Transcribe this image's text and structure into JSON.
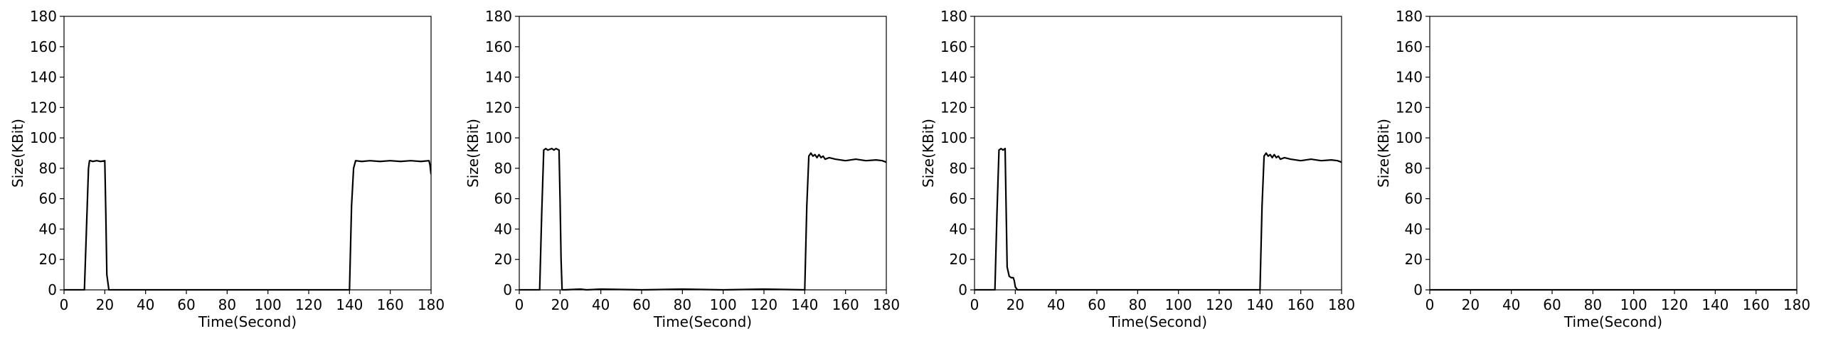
{
  "chart_data": [
    {
      "type": "line",
      "xlabel": "Time(Second)",
      "ylabel": "Size(KBit)",
      "xlim": [
        0,
        180
      ],
      "ylim": [
        0,
        180
      ],
      "xticks": [
        "0",
        "20",
        "40",
        "60",
        "80",
        "100",
        "120",
        "140",
        "160",
        "180"
      ],
      "yticks": [
        "0",
        "20",
        "40",
        "60",
        "80",
        "100",
        "120",
        "140",
        "160",
        "180"
      ],
      "grid": false,
      "line_color": "#000000",
      "series": [
        {
          "x": [
            0,
            10,
            11,
            12,
            12.5,
            13,
            14,
            16,
            18,
            20,
            20.5,
            21,
            22,
            40,
            60,
            80,
            100,
            120,
            140,
            141,
            142,
            143,
            146,
            150,
            155,
            160,
            165,
            170,
            175,
            179,
            179.5,
            180
          ],
          "y": [
            0,
            0,
            40,
            80,
            85,
            85,
            84.5,
            85,
            84.5,
            85,
            50,
            10,
            0,
            0,
            0,
            0,
            0,
            0,
            0,
            55,
            80,
            85,
            84.5,
            85,
            84.5,
            85,
            84.5,
            85,
            84.5,
            85,
            82,
            76
          ]
        }
      ]
    },
    {
      "type": "line",
      "xlabel": "Time(Second)",
      "ylabel": "Size(KBit)",
      "xlim": [
        0,
        180
      ],
      "ylim": [
        0,
        180
      ],
      "xticks": [
        "0",
        "20",
        "40",
        "60",
        "80",
        "100",
        "120",
        "140",
        "160",
        "180"
      ],
      "yticks": [
        "0",
        "20",
        "40",
        "60",
        "80",
        "100",
        "120",
        "140",
        "160",
        "180"
      ],
      "grid": false,
      "line_color": "#000000",
      "series": [
        {
          "x": [
            0,
            10,
            11,
            12,
            13,
            14,
            16,
            17,
            18,
            19.5,
            20,
            20.5,
            21,
            22,
            30,
            33,
            40,
            60,
            80,
            100,
            120,
            140,
            141,
            142,
            143,
            144,
            145,
            146,
            147,
            148,
            149,
            150,
            152,
            155,
            160,
            165,
            170,
            175,
            178,
            180
          ],
          "y": [
            0,
            0,
            50,
            92,
            93,
            92,
            93,
            92,
            93,
            92,
            60,
            20,
            0,
            0,
            0.5,
            0,
            0.5,
            0,
            0.5,
            0,
            0.5,
            0,
            55,
            88,
            90,
            88,
            89,
            87,
            89,
            87,
            88,
            86,
            87,
            86,
            85,
            86,
            85,
            85.5,
            85,
            84
          ]
        }
      ]
    },
    {
      "type": "line",
      "xlabel": "Time(Second)",
      "ylabel": "Size(KBit)",
      "xlim": [
        0,
        180
      ],
      "ylim": [
        0,
        180
      ],
      "xticks": [
        "0",
        "20",
        "40",
        "60",
        "80",
        "100",
        "120",
        "140",
        "160",
        "180"
      ],
      "yticks": [
        "0",
        "20",
        "40",
        "60",
        "80",
        "100",
        "120",
        "140",
        "160",
        "180"
      ],
      "grid": false,
      "line_color": "#000000",
      "series": [
        {
          "x": [
            0,
            10,
            11,
            12,
            13,
            14,
            15,
            16,
            17,
            18,
            19,
            19.5,
            20,
            21,
            22,
            40,
            60,
            80,
            100,
            120,
            140,
            141,
            142,
            143,
            144,
            145,
            146,
            147,
            148,
            149,
            150,
            152,
            155,
            160,
            165,
            170,
            175,
            178,
            180
          ],
          "y": [
            0,
            0,
            50,
            92,
            93,
            92,
            93,
            15,
            9,
            8,
            8,
            6,
            2,
            0,
            0,
            0,
            0,
            0,
            0,
            0,
            0,
            55,
            88,
            90,
            88,
            89,
            87,
            89,
            87,
            88,
            86,
            87,
            86,
            85,
            86,
            85,
            85.5,
            85,
            84
          ]
        }
      ]
    },
    {
      "type": "line",
      "xlabel": "Time(Second)",
      "ylabel": "Size(KBit)",
      "xlim": [
        0,
        180
      ],
      "ylim": [
        0,
        180
      ],
      "xticks": [
        "0",
        "20",
        "40",
        "60",
        "80",
        "100",
        "120",
        "140",
        "160",
        "180"
      ],
      "yticks": [
        "0",
        "20",
        "40",
        "60",
        "80",
        "100",
        "120",
        "140",
        "160",
        "180"
      ],
      "grid": false,
      "line_color": "#000000",
      "series": [
        {
          "x": [
            0,
            180
          ],
          "y": [
            0,
            0
          ]
        }
      ]
    }
  ]
}
